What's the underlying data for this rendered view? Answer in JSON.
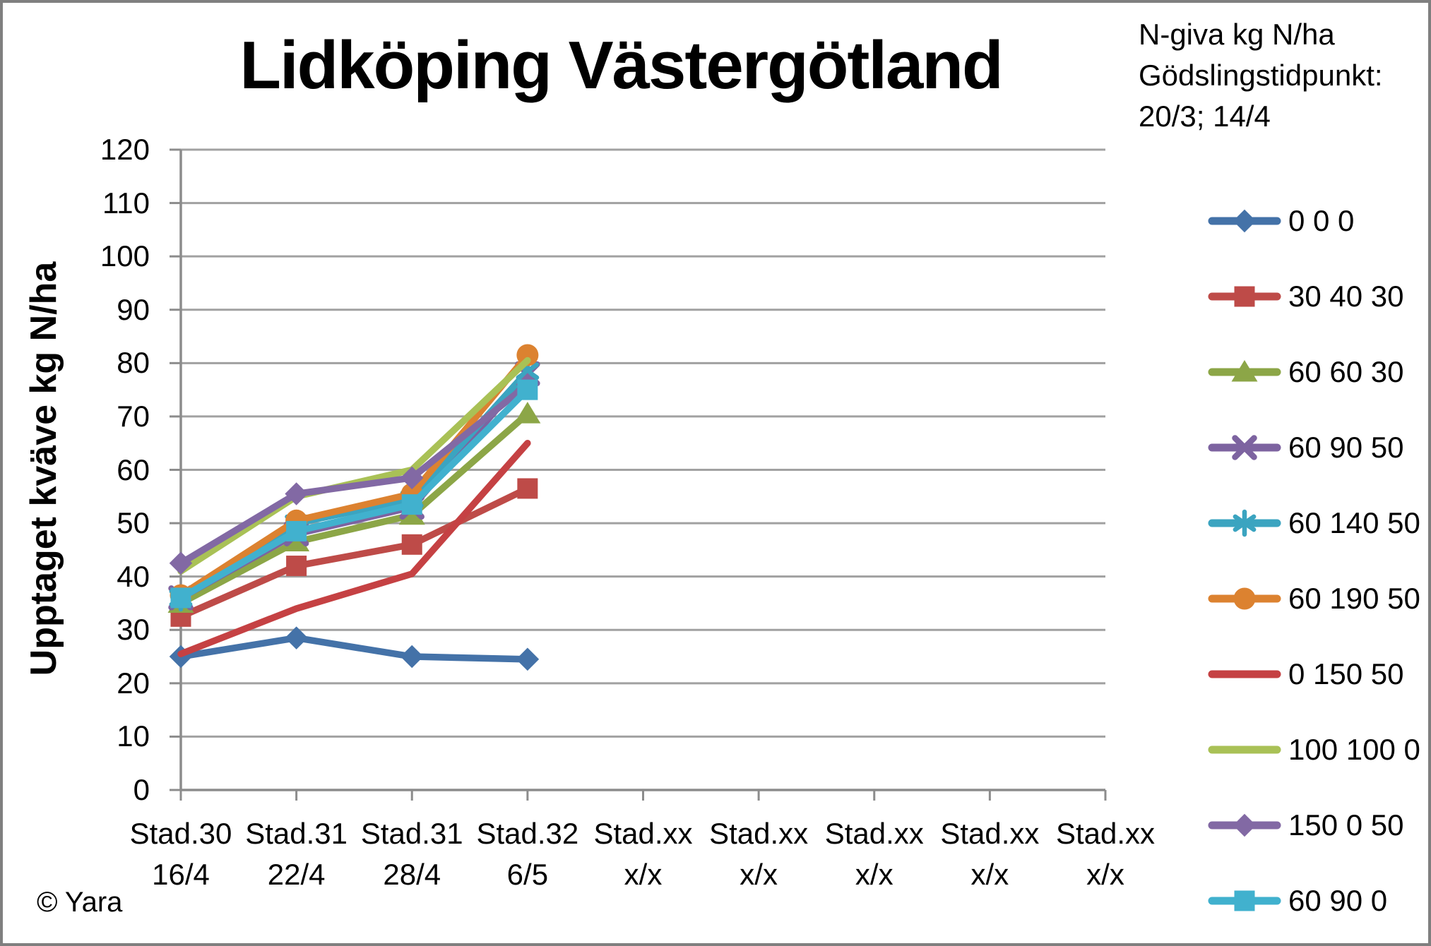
{
  "title": "Lidköping Västergötland",
  "copyright": "© Yara",
  "legend": {
    "header_lines": [
      "N-giva kg N/ha",
      "Gödslingstidpunkt:",
      "20/3; 14/4"
    ]
  },
  "chart_data": {
    "type": "line",
    "title": "Lidköping Västergötland",
    "xlabel": "",
    "ylabel": "Upptaget kväve kg N/ha",
    "ylim": [
      0,
      120
    ],
    "yticks": [
      0,
      10,
      20,
      30,
      40,
      50,
      60,
      70,
      80,
      90,
      100,
      110,
      120
    ],
    "grid": true,
    "legend_position": "right",
    "legend_title_lines": [
      "N-giva kg N/ha",
      "Gödslingstidpunkt:",
      "20/3; 14/4"
    ],
    "categories": [
      {
        "line1": "Stad.30",
        "line2": "16/4"
      },
      {
        "line1": "Stad.31",
        "line2": "22/4"
      },
      {
        "line1": "Stad.31",
        "line2": "28/4"
      },
      {
        "line1": "Stad.32",
        "line2": "6/5"
      },
      {
        "line1": "Stad.xx",
        "line2": "x/x"
      },
      {
        "line1": "Stad.xx",
        "line2": "x/x"
      },
      {
        "line1": "Stad.xx",
        "line2": "x/x"
      },
      {
        "line1": "Stad.xx",
        "line2": "x/x"
      },
      {
        "line1": "Stad.xx",
        "line2": "x/x"
      }
    ],
    "series": [
      {
        "name": "0 0 0",
        "color": "#4472A8",
        "marker": "diamond",
        "values": [
          25,
          28.5,
          25,
          24.5
        ]
      },
      {
        "name": "30 40 30",
        "color": "#BE4B48",
        "marker": "square",
        "values": [
          32.5,
          42,
          46,
          56.5
        ]
      },
      {
        "name": "60 60 30",
        "color": "#8CA647",
        "marker": "triangle",
        "values": [
          35,
          46.5,
          51.5,
          70.5
        ]
      },
      {
        "name": "60 90 50",
        "color": "#7D63A0",
        "marker": "x",
        "values": [
          36,
          48,
          53,
          78
        ]
      },
      {
        "name": "60 140 50",
        "color": "#3BA4C0",
        "marker": "asterisk",
        "values": [
          36,
          50,
          54.5,
          78.5
        ]
      },
      {
        "name": "60 190 50",
        "color": "#DC8230",
        "marker": "circle",
        "values": [
          36.5,
          50.5,
          55.5,
          81.5
        ]
      },
      {
        "name": "0 150 50",
        "color": "#C54143",
        "marker": "none",
        "values": [
          25.5,
          34,
          40.5,
          65
        ]
      },
      {
        "name": "100 100 0",
        "color": "#A9C156",
        "marker": "none",
        "values": [
          41,
          55,
          60,
          80.5
        ]
      },
      {
        "name": "150 0 50",
        "color": "#8269A4",
        "marker": "diamond",
        "values": [
          42.5,
          55.5,
          58.5,
          76
        ]
      },
      {
        "name": "60 90 0",
        "color": "#41B1CE",
        "marker": "square",
        "values": [
          36,
          48.5,
          53.5,
          75
        ]
      }
    ]
  }
}
